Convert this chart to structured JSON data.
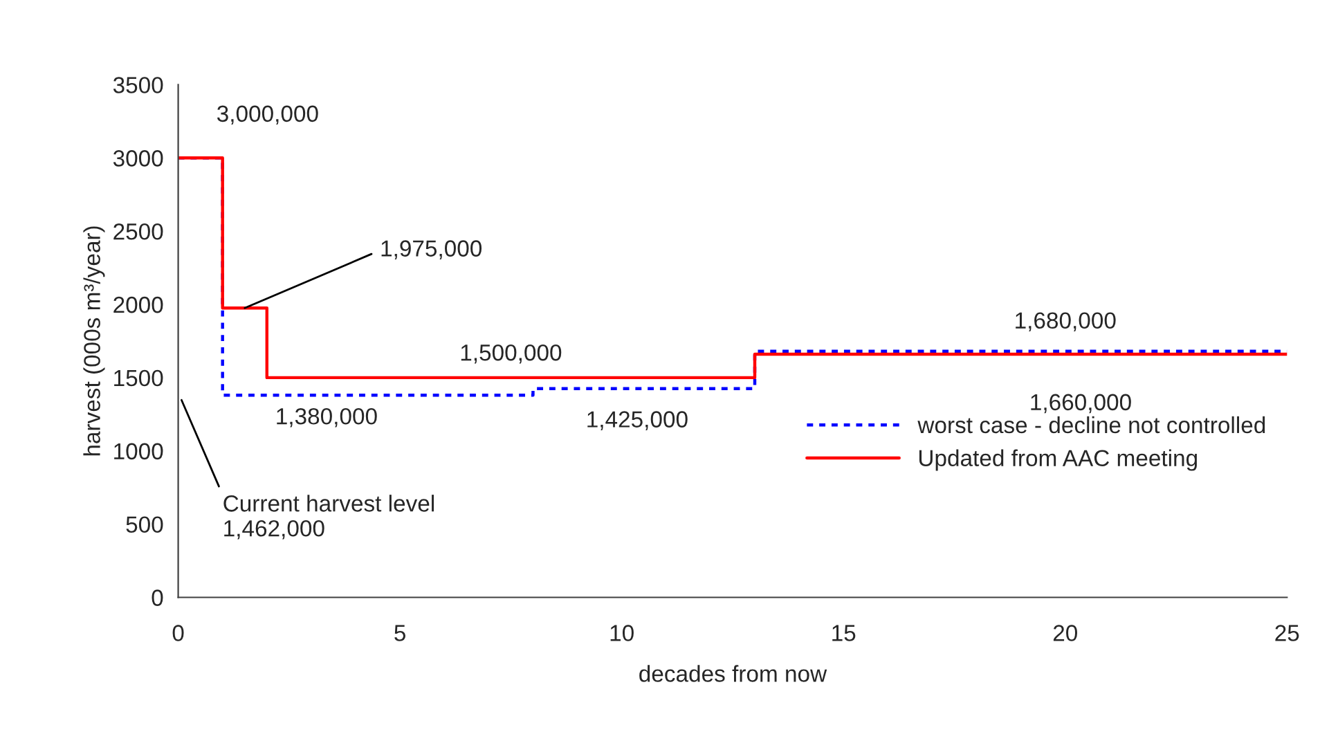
{
  "chart_data": {
    "type": "step",
    "xlabel": "decades from now",
    "ylabel": "harvest (000s m³/year)",
    "xlim": [
      0,
      25
    ],
    "xticks": [
      0,
      5,
      10,
      15,
      20,
      25
    ],
    "ylim": [
      0,
      3500
    ],
    "yticks": [
      0,
      500,
      1000,
      1500,
      2000,
      2500,
      3000,
      3500
    ],
    "grid": false,
    "legend": "right",
    "series": [
      {
        "name": "worst case - decline not controlled",
        "color": "#0000ff",
        "line_style": "dotted",
        "x": [
          0,
          1,
          8,
          13,
          25
        ],
        "values": [
          3000,
          1380,
          1425,
          1680,
          1680
        ]
      },
      {
        "name": "Updated from AAC meeting",
        "color": "#ff0000",
        "line_style": "solid",
        "x": [
          0,
          1,
          2,
          13,
          25
        ],
        "values": [
          3000,
          1975,
          1500,
          1660,
          1660
        ]
      }
    ],
    "annotations": [
      {
        "text": "3,000,000",
        "x": 0.5,
        "y": 3000
      },
      {
        "text": "1,975,000",
        "x": 1.5,
        "y": 1975
      },
      {
        "text": "1,380,000",
        "x": 2,
        "y": 1380
      },
      {
        "text": "1,500,000",
        "x": 7.5,
        "y": 1500
      },
      {
        "text": "1,425,000",
        "x": 10,
        "y": 1425
      },
      {
        "text": "1,680,000",
        "x": 20,
        "y": 1680
      },
      {
        "text": "1,660,000",
        "x": 20,
        "y": 1660
      },
      "Current harvest level\n1,462,000"
    ]
  }
}
